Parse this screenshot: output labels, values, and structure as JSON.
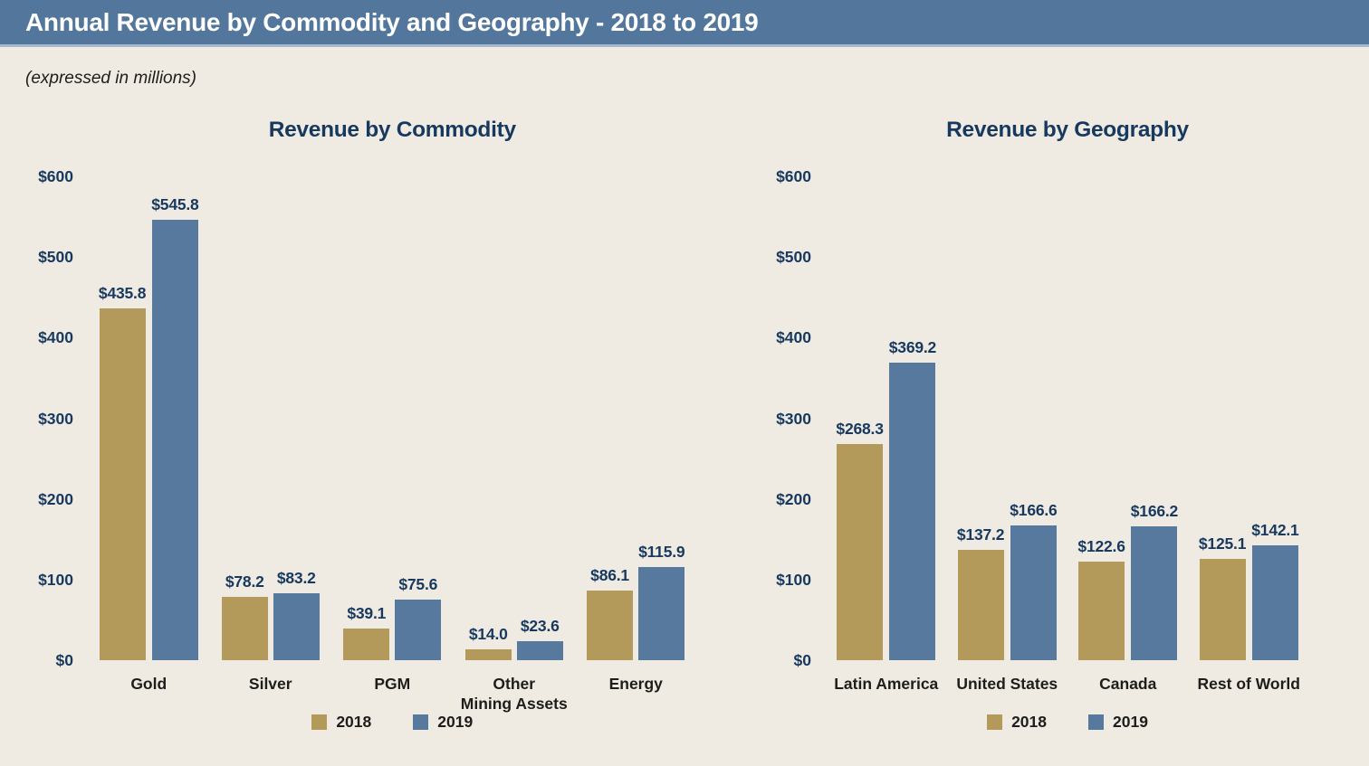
{
  "header": {
    "title": "Annual Revenue by Commodity and Geography - 2018 to 2019"
  },
  "subtitle": "(expressed in millions)",
  "colors": {
    "header_bg": "#53779c",
    "header_edge": "#aab7ca",
    "background": "#f0ebe2",
    "navy_text": "#17395f",
    "bar_2018": "#b39a5a",
    "bar_2019": "#57799e",
    "category_text": "#1d1d1b"
  },
  "legend": {
    "items": [
      {
        "label": "2018",
        "color": "#b39a5a"
      },
      {
        "label": "2019",
        "color": "#57799e"
      }
    ]
  },
  "chart_data": [
    {
      "type": "bar",
      "title": "Revenue by Commodity",
      "categories": [
        "Gold",
        "Silver",
        "PGM",
        "Other\nMining Assets",
        "Energy"
      ],
      "series": [
        {
          "name": "2018",
          "values": [
            435.8,
            78.2,
            39.1,
            14.0,
            86.1
          ]
        },
        {
          "name": "2019",
          "values": [
            545.8,
            83.2,
            75.6,
            23.6,
            115.9
          ]
        }
      ],
      "value_labels": [
        [
          "$435.8",
          "$78.2",
          "$39.1",
          "$14.0",
          "$86.1"
        ],
        [
          "$545.8",
          "$83.2",
          "$75.6",
          "$23.6",
          "$115.9"
        ]
      ],
      "ylabel": "",
      "xlabel": "",
      "ylim": [
        0,
        600
      ],
      "ytick_labels": [
        "$0",
        "$100",
        "$200",
        "$300",
        "$400",
        "$500",
        "$600"
      ],
      "grid": false,
      "legend_position": "bottom"
    },
    {
      "type": "bar",
      "title": "Revenue by Geography",
      "categories": [
        "Latin America",
        "United States",
        "Canada",
        "Rest of World"
      ],
      "series": [
        {
          "name": "2018",
          "values": [
            268.3,
            137.2,
            122.6,
            125.1
          ]
        },
        {
          "name": "2019",
          "values": [
            369.2,
            166.6,
            166.2,
            142.1
          ]
        }
      ],
      "value_labels": [
        [
          "$268.3",
          "$137.2",
          "$122.6",
          "$125.1"
        ],
        [
          "$369.2",
          "$166.6",
          "$166.2",
          "$142.1"
        ]
      ],
      "ylabel": "",
      "xlabel": "",
      "ylim": [
        0,
        600
      ],
      "ytick_labels": [
        "$0",
        "$100",
        "$200",
        "$300",
        "$400",
        "$500",
        "$600"
      ],
      "grid": false,
      "legend_position": "bottom"
    }
  ]
}
